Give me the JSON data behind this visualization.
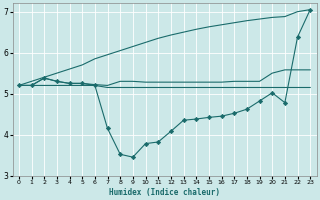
{
  "xlabel": "Humidex (Indice chaleur)",
  "bg_color": "#cce8e8",
  "line_color": "#1a6b6b",
  "xlim": [
    -0.5,
    23.5
  ],
  "ylim": [
    3,
    7.2
  ],
  "yticks": [
    3,
    4,
    5,
    6,
    7
  ],
  "xticks": [
    0,
    1,
    2,
    3,
    4,
    5,
    6,
    7,
    8,
    9,
    10,
    11,
    12,
    13,
    14,
    15,
    16,
    17,
    18,
    19,
    20,
    21,
    22,
    23
  ],
  "lines": [
    {
      "x": [
        0,
        2,
        3,
        4,
        5,
        6,
        7,
        8,
        9,
        10,
        11,
        12,
        13,
        14,
        15,
        16,
        17,
        18,
        19,
        20,
        21,
        22,
        23
      ],
      "y": [
        5.2,
        5.4,
        5.5,
        5.6,
        5.7,
        5.85,
        5.95,
        6.05,
        6.15,
        6.25,
        6.35,
        6.43,
        6.5,
        6.57,
        6.63,
        6.68,
        6.73,
        6.78,
        6.82,
        6.86,
        6.88,
        7.0,
        7.05
      ],
      "marker": false
    },
    {
      "x": [
        0,
        1,
        2,
        3,
        4,
        5,
        6,
        7,
        8,
        9,
        10,
        11,
        12,
        13,
        14,
        15,
        16,
        17,
        18,
        19,
        20,
        21,
        22,
        23
      ],
      "y": [
        5.2,
        5.2,
        5.38,
        5.3,
        5.25,
        5.25,
        5.22,
        5.2,
        5.3,
        5.3,
        5.28,
        5.28,
        5.28,
        5.28,
        5.28,
        5.28,
        5.28,
        5.3,
        5.3,
        5.3,
        5.5,
        5.58,
        5.58,
        5.58
      ],
      "marker": false
    },
    {
      "x": [
        0,
        1,
        2,
        3,
        4,
        5,
        6,
        7,
        8,
        9,
        10,
        11,
        12,
        13,
        14,
        15,
        16,
        17,
        18,
        19,
        20,
        21,
        22,
        23
      ],
      "y": [
        5.2,
        5.2,
        5.2,
        5.2,
        5.2,
        5.2,
        5.2,
        5.15,
        5.15,
        5.15,
        5.15,
        5.15,
        5.15,
        5.15,
        5.15,
        5.15,
        5.15,
        5.15,
        5.15,
        5.15,
        5.15,
        5.15,
        5.15,
        5.15
      ],
      "marker": false
    },
    {
      "x": [
        0,
        1,
        2,
        3,
        4,
        5,
        6,
        7,
        8,
        9,
        10,
        11,
        12,
        13,
        14,
        15,
        16,
        17,
        18,
        19,
        20,
        21,
        22,
        23
      ],
      "y": [
        5.2,
        5.2,
        5.38,
        5.3,
        5.25,
        5.25,
        5.2,
        4.15,
        3.52,
        3.45,
        3.78,
        3.82,
        4.08,
        4.35,
        4.38,
        4.42,
        4.45,
        4.52,
        4.62,
        4.82,
        5.02,
        4.78,
        6.38,
        7.05
      ],
      "marker": true
    }
  ]
}
